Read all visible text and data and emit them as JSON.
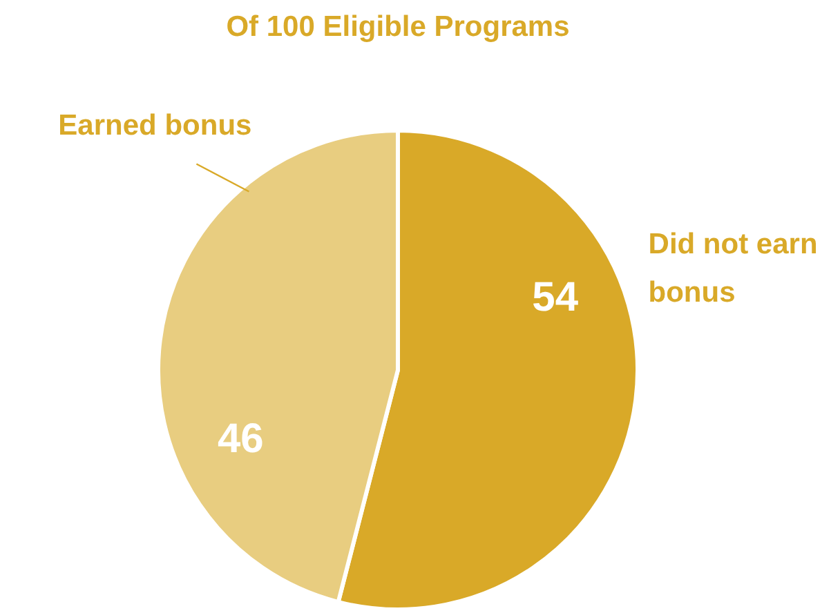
{
  "chart_data": {
    "type": "pie",
    "title": "Of 100 Eligible Programs",
    "categories": [
      "Did not earn bonus",
      "Earned bonus"
    ],
    "values": [
      54,
      46
    ],
    "colors": [
      "#d9a928",
      "#e8cd80"
    ],
    "data_labels": true,
    "legend": false
  }
}
